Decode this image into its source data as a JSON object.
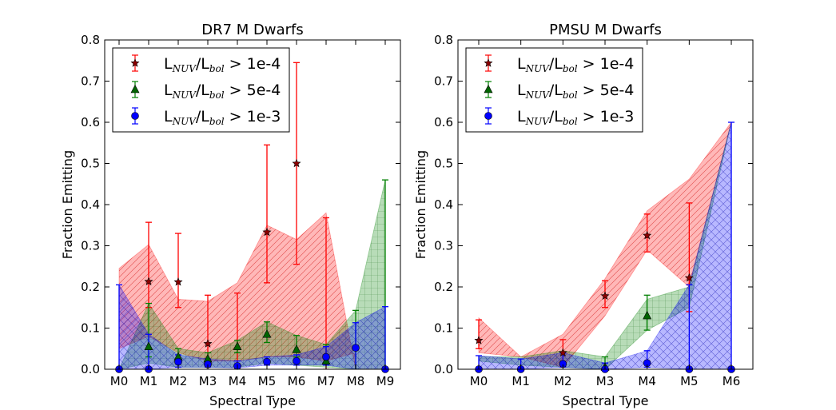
{
  "chart_data": [
    {
      "type": "scatter",
      "title": "DR7 M Dwarfs",
      "xlabel": "Spectral Type",
      "ylabel": "Fraction Emitting",
      "categories": [
        "M0",
        "M1",
        "M2",
        "M3",
        "M4",
        "M5",
        "M6",
        "M7",
        "M8",
        "M9"
      ],
      "ylim": [
        0,
        0.8
      ],
      "yticks": [
        "0.0",
        "0.1",
        "0.2",
        "0.3",
        "0.4",
        "0.5",
        "0.6",
        "0.7",
        "0.8"
      ],
      "legend_position": "top-left",
      "series": [
        {
          "name": "1e-4",
          "color": "#ff0000",
          "marker": "star",
          "values": [
            null,
            0.213,
            0.212,
            0.062,
            null,
            0.333,
            0.5,
            null,
            null,
            null
          ],
          "err_low": [
            null,
            0.15,
            0.15,
            0.02,
            0.0,
            0.21,
            0.255,
            0.0,
            null,
            null
          ],
          "err_high": [
            null,
            0.357,
            0.33,
            0.18,
            0.185,
            0.545,
            0.745,
            0.368,
            null,
            null
          ],
          "band_low": [
            0.05,
            0.08,
            0.04,
            0.02,
            0.02,
            0.03,
            0.03,
            0.02,
            0.04,
            null
          ],
          "band_high": [
            0.245,
            0.303,
            0.17,
            0.165,
            0.21,
            0.35,
            0.315,
            0.38,
            0.0,
            null
          ]
        },
        {
          "name": "5e-4",
          "color": "#008000",
          "marker": "triangle",
          "values": [
            null,
            0.055,
            0.03,
            0.025,
            0.055,
            0.085,
            0.048,
            0.02,
            null,
            null
          ],
          "err_low": [
            null,
            0.03,
            0.02,
            0.01,
            0.04,
            0.065,
            0.03,
            0.01,
            0.0,
            0.0
          ],
          "err_high": [
            null,
            0.16,
            0.05,
            0.04,
            0.07,
            0.115,
            0.082,
            0.06,
            0.143,
            0.46
          ],
          "band_low": [
            0.0,
            0.015,
            0.005,
            0.005,
            0.005,
            0.015,
            0.01,
            0.005,
            0.0,
            0.0
          ],
          "band_high": [
            0.0,
            0.16,
            0.05,
            0.04,
            0.07,
            0.115,
            0.082,
            0.06,
            0.143,
            0.46
          ]
        },
        {
          "name": "1e-3",
          "color": "#0000ff",
          "marker": "circle",
          "values": [
            0.0,
            0.0,
            0.018,
            0.012,
            0.008,
            0.018,
            0.02,
            0.03,
            0.052,
            0.0
          ],
          "err_low": [
            0.0,
            0.0,
            0.005,
            0.005,
            0.003,
            0.01,
            0.01,
            0.01,
            0.0,
            0.0
          ],
          "err_high": [
            0.205,
            0.085,
            0.035,
            0.025,
            0.02,
            0.03,
            0.035,
            0.055,
            0.113,
            0.152
          ],
          "band_low": [
            0.0,
            0.0,
            0.005,
            0.005,
            0.003,
            0.01,
            0.01,
            0.01,
            0.0,
            0.0
          ],
          "band_high": [
            0.205,
            0.085,
            0.035,
            0.025,
            0.02,
            0.03,
            0.035,
            0.055,
            0.113,
            0.152
          ]
        }
      ]
    },
    {
      "type": "scatter",
      "title": "PMSU M Dwarfs",
      "xlabel": "Spectral Type",
      "ylabel": "Fraction Emitting",
      "categories": [
        "M0",
        "M1",
        "M2",
        "M3",
        "M4",
        "M5",
        "M6"
      ],
      "ylim": [
        0,
        0.8
      ],
      "yticks": [
        "0.0",
        "0.1",
        "0.2",
        "0.3",
        "0.4",
        "0.5",
        "0.6",
        "0.7",
        "0.8"
      ],
      "legend_position": "top-left",
      "series": [
        {
          "name": "1e-4",
          "color": "#ff0000",
          "marker": "star",
          "values": [
            0.07,
            null,
            0.04,
            0.178,
            0.325,
            0.222,
            null
          ],
          "err_low": [
            0.05,
            null,
            0.01,
            0.15,
            0.285,
            0.14,
            null
          ],
          "err_high": [
            0.12,
            null,
            0.072,
            0.215,
            0.377,
            0.404,
            null
          ],
          "band_low": [
            0.04,
            0.03,
            0.005,
            0.13,
            0.29,
            0.2,
            0.6
          ],
          "band_high": [
            0.125,
            0.03,
            0.085,
            0.22,
            0.385,
            0.462,
            0.6
          ]
        },
        {
          "name": "5e-4",
          "color": "#008000",
          "marker": "triangle",
          "values": [
            null,
            null,
            null,
            0.005,
            0.13,
            null,
            null
          ],
          "err_low": [
            null,
            null,
            null,
            0.0,
            0.095,
            null,
            null
          ],
          "err_high": [
            null,
            null,
            null,
            0.03,
            0.18,
            null,
            null
          ],
          "band_low": [
            0.02,
            0.01,
            0.005,
            0.0,
            0.095,
            0.15,
            0.6
          ],
          "band_high": [
            0.03,
            0.03,
            0.045,
            0.03,
            0.17,
            0.2,
            0.6
          ]
        },
        {
          "name": "1e-3",
          "color": "#0000ff",
          "marker": "circle",
          "values": [
            0.0,
            0.0,
            0.013,
            0.0,
            0.015,
            0.0,
            0.0
          ],
          "err_low": [
            0.0,
            0.0,
            0.005,
            0.0,
            0.005,
            0.0,
            0.0
          ],
          "err_high": [
            0.033,
            0.025,
            0.04,
            0.015,
            0.045,
            0.205,
            0.6
          ],
          "band_low": [
            0.0,
            0.0,
            0.005,
            0.0,
            0.005,
            0.0,
            0.0
          ],
          "band_high": [
            0.033,
            0.025,
            0.04,
            0.015,
            0.045,
            0.205,
            0.6
          ]
        }
      ]
    }
  ],
  "legend": {
    "L": "L",
    "nuv": "NUV",
    "slash": "/L",
    "bol": "bol",
    "thresholds": [
      "> 1e-4",
      "> 5e-4",
      "> 1e-3"
    ]
  }
}
